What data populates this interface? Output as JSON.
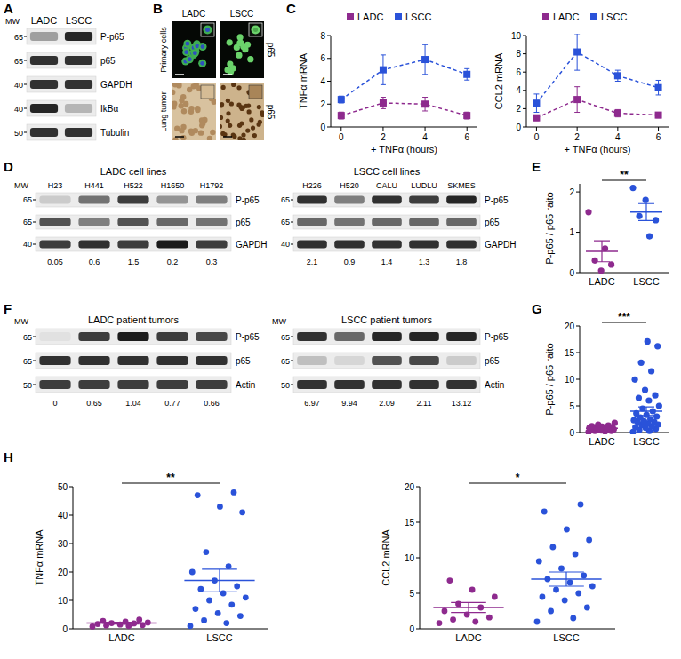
{
  "panel_labels": [
    "A",
    "B",
    "C",
    "D",
    "E",
    "F",
    "G",
    "H"
  ],
  "blots": [
    {
      "lanes": [
        "LADC",
        "LSCC"
      ],
      "mw_label": "MW",
      "rows": [
        {
          "label": "P-p65",
          "mw": 65,
          "intensity": [
            0.35,
            0.9
          ]
        },
        {
          "label": "p65",
          "mw": 65,
          "intensity": [
            0.85,
            0.85
          ]
        },
        {
          "label": "GAPDH",
          "mw": 40,
          "intensity": [
            0.85,
            0.85
          ]
        },
        {
          "label": "IkBα",
          "mw": 40,
          "intensity": [
            0.9,
            0.25
          ]
        },
        {
          "label": "Tubulin",
          "mw": 50,
          "intensity": [
            0.85,
            0.85
          ]
        }
      ]
    },
    {
      "title": "LADC cell lines",
      "lanes": [
        "H23",
        "H441",
        "H522",
        "H1650",
        "H1792"
      ],
      "mw_label": "MW",
      "rows": [
        {
          "label": "P-p65",
          "mw": 65,
          "intensity": [
            0.15,
            0.55,
            0.8,
            0.4,
            0.5
          ]
        },
        {
          "label": "p65",
          "mw": 65,
          "intensity": [
            0.7,
            0.5,
            0.7,
            0.6,
            0.55
          ]
        },
        {
          "label": "GAPDH",
          "mw": 40,
          "intensity": [
            0.8,
            0.85,
            0.8,
            0.95,
            0.8
          ]
        }
      ],
      "quantification": [
        0.05,
        0.6,
        1.5,
        0.2,
        0.3
      ]
    },
    {
      "title": "LSCC cell lines",
      "lanes": [
        "H226",
        "H520",
        "CALU",
        "LUDLU",
        "SKMES"
      ],
      "rows": [
        {
          "label": "P-p65",
          "mw": 65,
          "intensity": [
            0.85,
            0.5,
            0.85,
            0.8,
            0.9
          ]
        },
        {
          "label": "p65",
          "mw": 65,
          "intensity": [
            0.6,
            0.55,
            0.6,
            0.6,
            0.6
          ]
        },
        {
          "label": "GAPDH",
          "mw": 40,
          "intensity": [
            0.85,
            0.85,
            0.85,
            0.85,
            0.85
          ]
        }
      ],
      "quantification": [
        2.1,
        0.9,
        1.4,
        1.3,
        1.8
      ]
    },
    {
      "title": "LADC patient tumors",
      "mw_label": "MW",
      "rows": [
        {
          "label": "P-p65",
          "mw": 65,
          "intensity": [
            0.05,
            0.8,
            0.95,
            0.8,
            0.75
          ]
        },
        {
          "label": "p65",
          "mw": 65,
          "intensity": [
            0.85,
            0.85,
            0.85,
            0.85,
            0.85
          ]
        },
        {
          "label": "Actin",
          "mw": 50,
          "intensity": [
            0.8,
            0.8,
            0.8,
            0.8,
            0.8
          ]
        }
      ],
      "quantification": [
        0,
        0.65,
        1.04,
        0.77,
        0.66
      ]
    },
    {
      "title": "LSCC patient tumors",
      "mw_label": "MW",
      "rows": [
        {
          "label": "P-p65",
          "mw": 65,
          "intensity": [
            0.85,
            0.6,
            0.9,
            0.9,
            0.9
          ]
        },
        {
          "label": "p65",
          "mw": 65,
          "intensity": [
            0.2,
            0.1,
            0.7,
            0.75,
            0.15
          ]
        },
        {
          "label": "Actin",
          "mw": 50,
          "intensity": [
            0.85,
            0.85,
            0.85,
            0.85,
            0.85
          ]
        }
      ],
      "quantification": [
        6.97,
        9.94,
        2.09,
        2.11,
        13.12
      ]
    }
  ],
  "micrographs": {
    "columns": [
      "LADC",
      "LSCC"
    ],
    "rows": [
      {
        "label": "Primary cells",
        "stain": "p65"
      },
      {
        "label": "Lung tumor",
        "stain": "p65"
      }
    ]
  },
  "chart_data": [
    {
      "type": "line",
      "x": [
        0,
        2,
        4,
        6
      ],
      "xlim": [
        -0.5,
        6.5
      ],
      "xticks": [
        0,
        2,
        4,
        6
      ],
      "ylim": [
        0,
        8
      ],
      "yticks": [
        0,
        2,
        4,
        6,
        8
      ],
      "xlabel": "+ TNFα (hours)",
      "ylabel": "TNFα mRNA",
      "legend": "top",
      "marker": "square",
      "line_style": "dashed",
      "series": [
        {
          "name": "LADC",
          "color": "#8e2a8e",
          "values": [
            1.0,
            2.1,
            2.0,
            1.0
          ],
          "errors": [
            0.3,
            0.5,
            0.6,
            0.3
          ]
        },
        {
          "name": "LSCC",
          "color": "#2a52d9",
          "values": [
            2.4,
            5.0,
            5.9,
            4.6
          ],
          "errors": [
            0.3,
            1.3,
            1.3,
            0.5
          ]
        }
      ]
    },
    {
      "type": "line",
      "x": [
        0,
        2,
        4,
        6
      ],
      "xlim": [
        -0.5,
        6.5
      ],
      "xticks": [
        0,
        2,
        4,
        6
      ],
      "ylim": [
        0,
        10
      ],
      "yticks": [
        0,
        2,
        4,
        6,
        8,
        10
      ],
      "xlabel": "+ TNFα (hours)",
      "ylabel": "CCL2 mRNA",
      "legend": "top",
      "marker": "square",
      "line_style": "dashed",
      "series": [
        {
          "name": "LADC",
          "color": "#8e2a8e",
          "values": [
            1.0,
            3.0,
            1.5,
            1.3
          ],
          "errors": [
            0.3,
            1.4,
            0.4,
            0.3
          ]
        },
        {
          "name": "LSCC",
          "color": "#2a52d9",
          "values": [
            2.6,
            8.2,
            5.6,
            4.3
          ],
          "errors": [
            1.0,
            2.0,
            0.6,
            0.8
          ]
        }
      ]
    },
    {
      "type": "scatter",
      "categories": [
        "LADC",
        "LSCC"
      ],
      "colors": [
        "#8e2a8e",
        "#2a52d9"
      ],
      "ylabel": "P-p65 / p65 raito",
      "ylim": [
        0,
        2.2
      ],
      "yticks": [
        0,
        1,
        2
      ],
      "values": [
        [
          1.5,
          0.6,
          0.3,
          0.2,
          0.05
        ],
        [
          2.1,
          0.9,
          1.4,
          1.3,
          1.8
        ]
      ],
      "means": [
        0.53,
        1.5
      ],
      "errors": [
        0.26,
        0.21
      ],
      "annotations": [
        {
          "text": "**"
        }
      ]
    },
    {
      "type": "scatter",
      "categories": [
        "LADC",
        "LSCC"
      ],
      "colors": [
        "#8e2a8e",
        "#2a52d9"
      ],
      "ylabel": "P-p65 / p65 raito",
      "ylim": [
        0,
        20
      ],
      "yticks": [
        0,
        5,
        10,
        15,
        20
      ],
      "values": [
        [
          0.1,
          0.2,
          0.3,
          0.3,
          0.4,
          0.5,
          0.5,
          0.6,
          0.6,
          0.7,
          0.7,
          0.8,
          0.8,
          0.9,
          0.9,
          1.0,
          1.0,
          1.1,
          1.2,
          1.3,
          1.5,
          1.8
        ],
        [
          0.1,
          0.3,
          0.5,
          0.7,
          0.9,
          1.0,
          1.2,
          1.4,
          1.5,
          1.7,
          1.9,
          2.0,
          2.1,
          2.3,
          2.5,
          2.8,
          3.0,
          3.3,
          3.6,
          4.0,
          4.5,
          5.0,
          6.0,
          6.5,
          6.97,
          8.0,
          9.94,
          11.5,
          13.12,
          16.2,
          17.1
        ]
      ],
      "means": [
        0.8,
        4.0
      ],
      "errors": [
        0.1,
        0.8
      ],
      "annotations": [
        {
          "text": "***"
        }
      ]
    },
    {
      "type": "scatter",
      "categories": [
        "LADC",
        "LSCC"
      ],
      "colors": [
        "#8e2a8e",
        "#2a52d9"
      ],
      "ylabel": "TNFα mRNA",
      "ylim": [
        0,
        50
      ],
      "yticks": [
        0,
        10,
        20,
        30,
        40,
        50
      ],
      "values": [
        [
          0.8,
          1.0,
          1.2,
          1.3,
          1.5,
          1.7,
          1.9,
          2.0,
          2.2,
          2.5,
          2.8,
          3.2
        ],
        [
          1.0,
          2.0,
          3.0,
          4.5,
          5.5,
          7.0,
          8.5,
          10,
          11,
          12.5,
          14,
          15,
          17,
          20,
          22,
          27,
          41,
          43,
          47,
          48
        ]
      ],
      "means": [
        2.0,
        17
      ],
      "errors": [
        0.3,
        4
      ],
      "annotations": [
        {
          "text": "**"
        }
      ]
    },
    {
      "type": "scatter",
      "categories": [
        "LADC",
        "LSCC"
      ],
      "colors": [
        "#8e2a8e",
        "#2a52d9"
      ],
      "ylabel": "CCL2 mRNA",
      "ylim": [
        0,
        20
      ],
      "yticks": [
        0,
        5,
        10,
        15,
        20
      ],
      "values": [
        [
          0.8,
          1.0,
          1.3,
          1.6,
          2.0,
          2.5,
          3.0,
          3.5,
          4.5,
          5.5,
          6.8
        ],
        [
          1.0,
          1.5,
          2.5,
          3.0,
          4.0,
          4.5,
          5.0,
          5.5,
          6.0,
          6.5,
          7.0,
          7.5,
          8.5,
          9.5,
          10.5,
          11.5,
          12.5,
          14,
          16.5,
          17.5
        ]
      ],
      "means": [
        3.0,
        7.0
      ],
      "errors": [
        0.7,
        1.0
      ],
      "annotations": [
        {
          "text": "*"
        }
      ]
    }
  ]
}
